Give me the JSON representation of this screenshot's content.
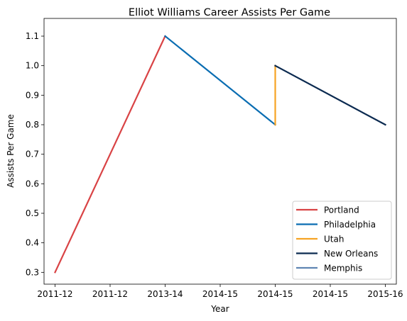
{
  "chart_data": {
    "type": "line",
    "title": "Elliot Williams Career Assists Per Game",
    "xlabel": "Year",
    "ylabel": "Assists Per Game",
    "x_ticks": [
      "2011-12",
      "2011-12",
      "2013-14",
      "2014-15",
      "2014-15",
      "2014-15",
      "2015-16"
    ],
    "ylim": [
      0.26,
      1.16
    ],
    "y_ticks": [
      0.3,
      0.4,
      0.5,
      0.6,
      0.7,
      0.8,
      0.9,
      1.0,
      1.1
    ],
    "y_tick_labels": [
      "0.3",
      "0.4",
      "0.5",
      "0.6",
      "0.7",
      "0.8",
      "0.9",
      "1.0",
      "1.1"
    ],
    "grid": false,
    "legend_position": "bottom-right",
    "series": [
      {
        "name": "Portland",
        "color": "#d94345",
        "points": [
          [
            0,
            0.3
          ],
          [
            2,
            1.1
          ]
        ]
      },
      {
        "name": "Philadelphia",
        "color": "#0a6db2",
        "points": [
          [
            2,
            1.1
          ],
          [
            4,
            0.8
          ]
        ]
      },
      {
        "name": "Utah",
        "color": "#f6a324",
        "points": [
          [
            4,
            0.8
          ],
          [
            4,
            1.0
          ]
        ]
      },
      {
        "name": "New Orleans",
        "color": "#0b2a50",
        "points": [
          [
            4,
            1.0
          ],
          [
            6,
            0.8
          ]
        ]
      },
      {
        "name": "Memphis",
        "color": "#5f86b3",
        "points": []
      }
    ]
  }
}
